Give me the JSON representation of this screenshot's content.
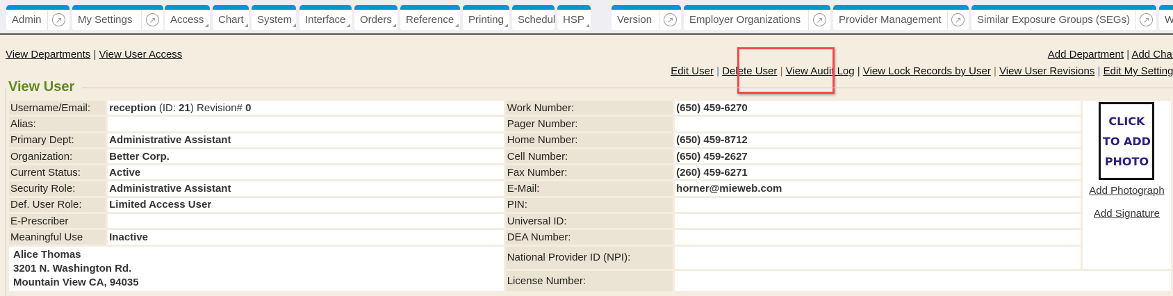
{
  "tabs": [
    {
      "label": "Admin",
      "ext": true
    },
    {
      "label": "My Settings",
      "ext": true
    },
    {
      "label": "Access",
      "dropdown": true
    },
    {
      "label": "Chart",
      "dropdown": true
    },
    {
      "label": "System",
      "dropdown": true
    },
    {
      "label": "Interface",
      "dropdown": true
    },
    {
      "label": "Orders",
      "dropdown": true
    },
    {
      "label": "Reference",
      "dropdown": true
    },
    {
      "label": "Printing",
      "dropdown": true
    },
    {
      "label": "Scheduling",
      "dropdown": true
    },
    {
      "label": "HSP",
      "dropdown": true
    },
    {
      "label": "Version",
      "ext": true
    },
    {
      "label": "Employer Organizations",
      "ext": true
    },
    {
      "label": "Provider Management",
      "ext": true
    },
    {
      "label": "Similar Exposure Groups (SEGs)",
      "ext": true
    },
    {
      "label": "W"
    }
  ],
  "ext_icon": "↗",
  "left_links": [
    "View Departments",
    "View User Access"
  ],
  "right_links_top": [
    "Add Department",
    "Add Chart"
  ],
  "right_links": [
    "Edit User",
    "Delete User",
    "View Audit Log",
    "View Lock Records by User",
    "View User Revisions",
    "Edit My Settings"
  ],
  "section_title": "View User",
  "user": {
    "username": "reception",
    "id_label": "(ID:",
    "id": "21",
    "revision_label": ") Revision#",
    "revision": "0",
    "left_fields": [
      {
        "label": "Username/Email:",
        "value": ""
      },
      {
        "label": "Alias:",
        "value": ""
      },
      {
        "label": "Primary Dept:",
        "value": "Administrative Assistant"
      },
      {
        "label": "Organization:",
        "value": "Better Corp."
      },
      {
        "label": "Current Status:",
        "value": "Active"
      },
      {
        "label": "Security Role:",
        "value": "Administrative Assistant"
      },
      {
        "label": "Def. User Role:",
        "value": "Limited Access User"
      },
      {
        "label": "E-Prescriber",
        "value": ""
      },
      {
        "label": "Meaningful Use",
        "value": "Inactive"
      }
    ],
    "right_fields": [
      {
        "label": "Work Number:",
        "value": "(650) 459-6270"
      },
      {
        "label": "Pager Number:",
        "value": ""
      },
      {
        "label": "Home Number:",
        "value": "(650) 459-8712"
      },
      {
        "label": "Cell Number:",
        "value": "(650) 459-2627"
      },
      {
        "label": "Fax Number:",
        "value": "(260) 459-6271"
      },
      {
        "label": "E-Mail:",
        "value": "horner@mieweb.com"
      },
      {
        "label": "PIN:",
        "value": ""
      },
      {
        "label": "Universal ID:",
        "value": ""
      },
      {
        "label": "DEA Number:",
        "value": ""
      },
      {
        "label": "National Provider ID (NPI):",
        "value": ""
      },
      {
        "label": "License Number:",
        "value": ""
      }
    ],
    "address": [
      "Alice Thomas",
      "3201 N. Washington Rd.",
      "Mountain View CA, 94035"
    ]
  },
  "photo": {
    "lines": [
      "CLICK",
      "TO ADD",
      "PHOTO"
    ],
    "add_photo": "Add Photograph",
    "add_signature": "Add Signature"
  },
  "colors": {
    "tab_accent": "#0096d6",
    "section_title": "#5e8a1e",
    "highlight": "#ef4b4b"
  }
}
